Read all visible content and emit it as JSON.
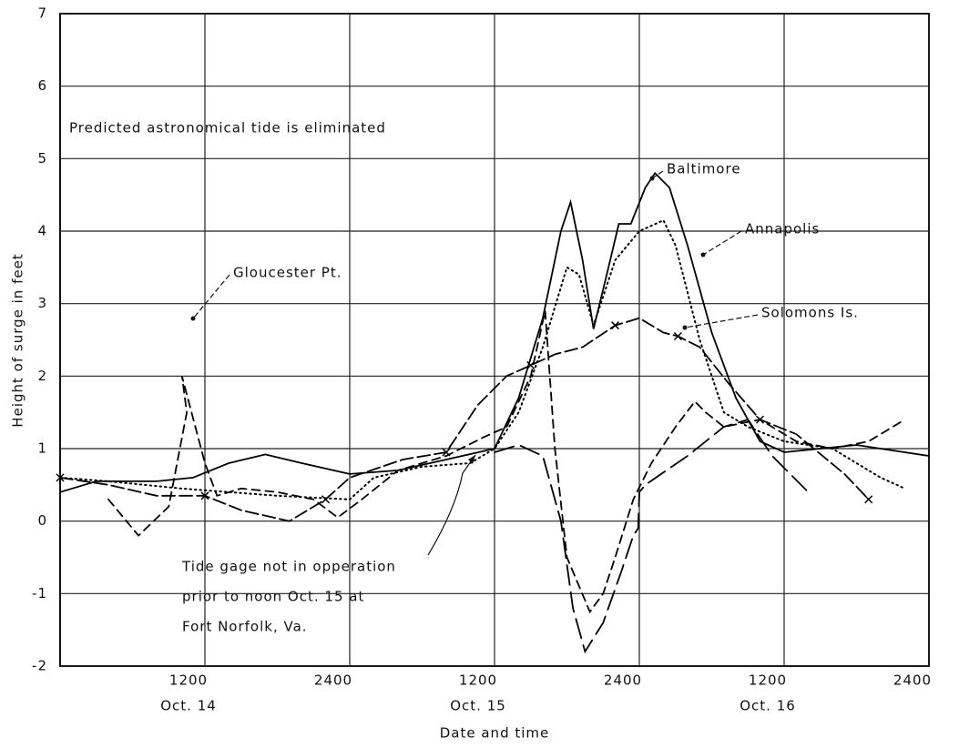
{
  "chart_data": {
    "type": "line",
    "title_annotation": "Predicted astronomical tide is eliminated",
    "annotations": [
      "Tide gage not in opperation",
      "prior to noon Oct. 15 at",
      "Fort Norfolk, Va."
    ],
    "xlabel": "Date and time",
    "ylabel": "Height of surge in feet",
    "xlim": [
      0,
      72
    ],
    "ylim": [
      -2,
      7
    ],
    "xticks": [
      {
        "value": 12,
        "label": "1200"
      },
      {
        "value": 24,
        "label": "2400"
      },
      {
        "value": 36,
        "label": "1200"
      },
      {
        "value": 48,
        "label": "2400"
      },
      {
        "value": 60,
        "label": "1200"
      },
      {
        "value": 72,
        "label": "2400"
      }
    ],
    "x_date_labels": [
      {
        "value": 12,
        "label": "Oct. 14"
      },
      {
        "value": 36,
        "label": "Oct. 15"
      },
      {
        "value": 60,
        "label": "Oct. 16"
      }
    ],
    "yticks": [
      -2,
      -1,
      0,
      1,
      2,
      3,
      4,
      5,
      6,
      7
    ],
    "grid": true,
    "series": [
      {
        "name": "Baltimore",
        "color": "#000000",
        "style": "solid",
        "x": [
          0,
          3,
          8,
          11,
          14,
          17,
          20,
          24,
          28,
          32,
          36,
          38,
          40,
          41.5,
          42.3,
          43.3,
          44.2,
          45.3,
          46.3,
          47.3,
          48.5,
          49.3,
          50.5,
          52,
          54,
          56,
          58,
          60,
          63,
          66,
          72
        ],
        "values": [
          0.4,
          0.55,
          0.55,
          0.6,
          0.8,
          0.92,
          0.8,
          0.65,
          0.7,
          0.85,
          1.0,
          1.7,
          2.8,
          4.0,
          4.4,
          3.6,
          2.65,
          3.4,
          4.1,
          4.1,
          4.6,
          4.8,
          4.6,
          3.8,
          2.6,
          1.7,
          1.1,
          0.95,
          1.0,
          1.05,
          0.9
        ]
      },
      {
        "name": "Annapolis",
        "color": "#000000",
        "style": "dotted",
        "x": [
          0,
          4,
          10,
          14,
          18,
          24,
          26,
          30,
          34,
          36,
          38,
          40,
          42,
          43,
          44.2,
          46,
          48,
          50,
          51,
          53,
          55,
          57,
          60,
          64,
          68,
          70
        ],
        "values": [
          0.6,
          0.55,
          0.45,
          0.4,
          0.35,
          0.3,
          0.6,
          0.75,
          0.8,
          1.0,
          1.5,
          2.4,
          3.5,
          3.4,
          2.7,
          3.6,
          4.0,
          4.15,
          3.8,
          2.5,
          1.5,
          1.3,
          1.1,
          1.0,
          0.6,
          0.45
        ]
      },
      {
        "name": "Solomons Is.",
        "color": "#000000",
        "style": "dashdot",
        "markers": "x",
        "x": [
          0,
          4,
          8,
          12,
          15,
          19,
          22,
          24,
          28.4,
          32,
          34.6,
          37,
          39,
          41,
          43.3,
          46,
          48,
          50,
          51.2,
          53,
          55.4,
          58,
          61,
          65,
          67
        ],
        "values": [
          0.6,
          0.5,
          0.35,
          0.35,
          0.15,
          0,
          0.3,
          0.6,
          0.85,
          0.95,
          1.6,
          2.0,
          2.15,
          2.3,
          2.4,
          2.7,
          2.8,
          2.6,
          2.55,
          2.4,
          1.9,
          1.4,
          1.2,
          0.65,
          0.3
        ]
      },
      {
        "name": "Gloucester Pt.",
        "color": "#000000",
        "style": "dashed",
        "x": [
          4,
          6.5,
          9,
          10.5,
          10.1,
          12,
          13,
          15,
          18,
          21,
          23,
          25,
          28,
          32,
          35,
          37,
          39,
          40.2,
          41,
          42,
          43.9,
          45,
          46,
          47.5,
          49,
          51,
          52.6,
          53.5,
          55,
          58,
          61,
          64,
          67,
          70
        ],
        "values": [
          0.3,
          -0.2,
          0.2,
          1.5,
          2.0,
          0.8,
          0.35,
          0.45,
          0.4,
          0.3,
          0.05,
          0.3,
          0.7,
          0.9,
          1.15,
          1.3,
          2.0,
          2.9,
          1.0,
          -0.5,
          -1.25,
          -1.0,
          -0.5,
          0.3,
          0.8,
          1.3,
          1.65,
          1.5,
          1.3,
          1.4,
          1.1,
          1.0,
          1.1,
          1.4
        ]
      },
      {
        "color": "#000000",
        "style": "longdash",
        "x": [
          36,
          38,
          40,
          41.5,
          42.5,
          43.5,
          45,
          46.5,
          47.5,
          47.9,
          48,
          48.5,
          52,
          55,
          57,
          59,
          62
        ],
        "values": [
          0.95,
          1.05,
          0.9,
          0.0,
          -1.2,
          -1.8,
          -1.4,
          -0.7,
          -0.2,
          -0.1,
          0.4,
          0.5,
          0.9,
          1.3,
          1.4,
          0.9,
          0.4
        ]
      }
    ]
  }
}
